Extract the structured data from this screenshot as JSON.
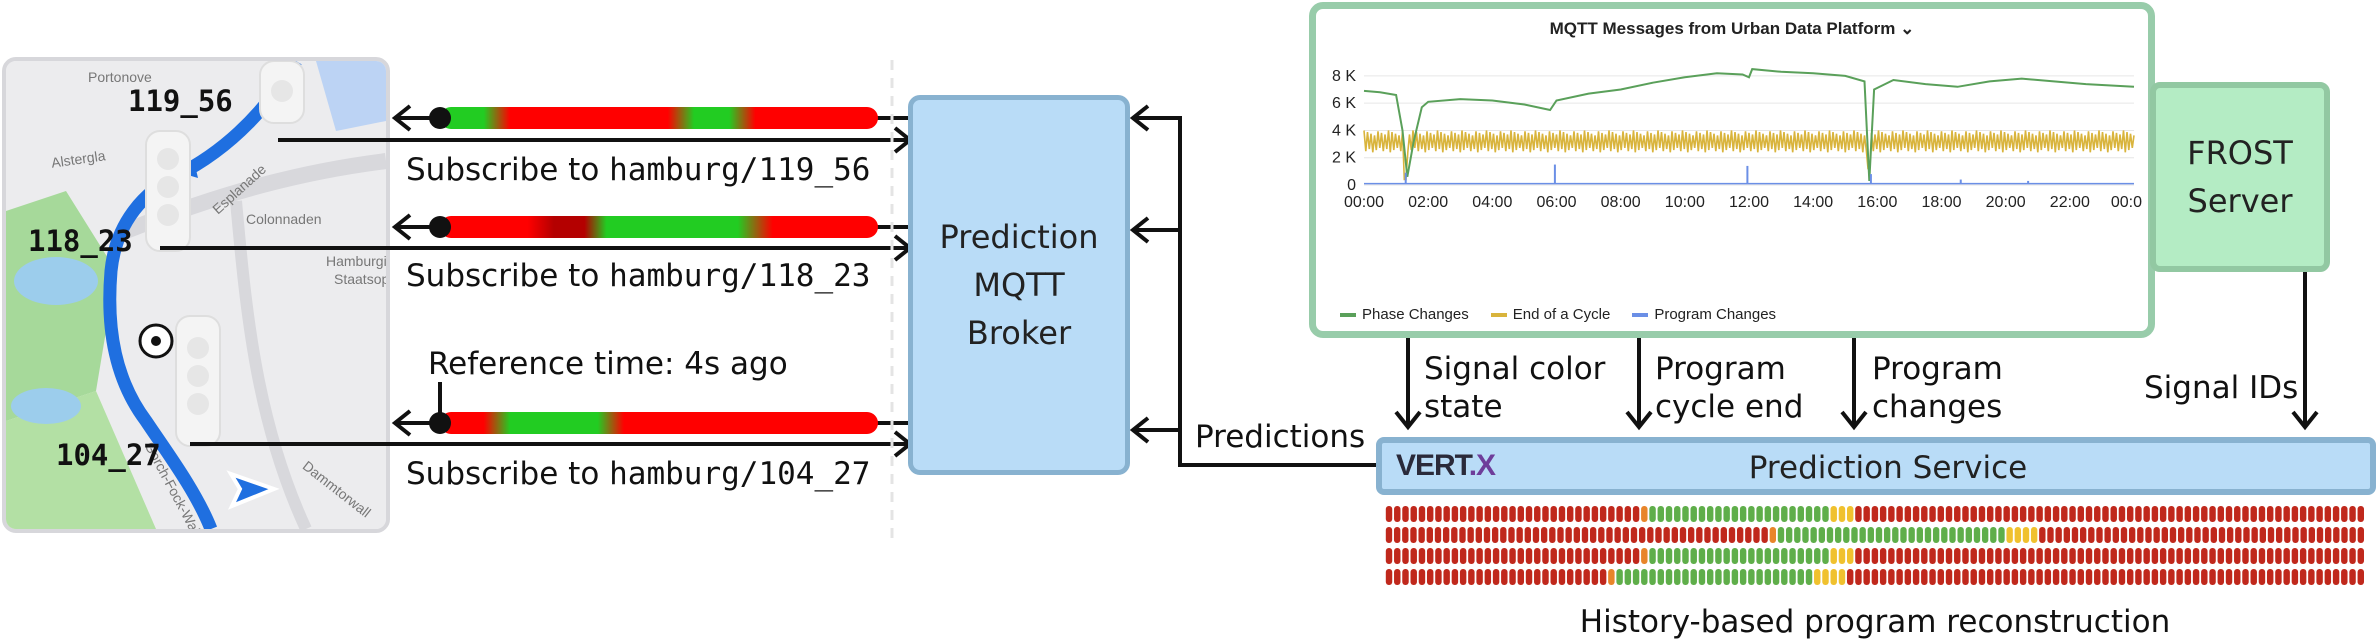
{
  "map": {
    "signals": [
      "119_56",
      "118_23",
      "104_27"
    ],
    "streets": [
      "Portonove",
      "Alstergla",
      "Esplanade",
      "Colonnaden",
      "Hamburgi",
      "Staatsop",
      "Gorch-Fock-Wall",
      "Dammtorwall"
    ]
  },
  "subscriptions": [
    {
      "prefix": "Subscribe to ",
      "topic": "hamburg/119_56"
    },
    {
      "prefix": "Subscribe to ",
      "topic": "hamburg/118_23"
    },
    {
      "prefix": "Subscribe to ",
      "topic": "hamburg/104_27"
    }
  ],
  "reference_time": "Reference time: 4s ago",
  "broker": {
    "line1": "Prediction",
    "line2": "MQTT",
    "line3": "Broker"
  },
  "chart_data": {
    "type": "line",
    "title": "MQTT Messages from Urban Data Platform",
    "title_chevron": "⌄",
    "x_ticks": [
      "00:00",
      "02:00",
      "04:00",
      "06:00",
      "08:00",
      "10:00",
      "12:00",
      "14:00",
      "16:00",
      "18:00",
      "20:00",
      "22:00",
      "00:0"
    ],
    "y_ticks": [
      "0",
      "2 K",
      "4 K",
      "6 K",
      "8 K"
    ],
    "ylim": [
      0,
      8800
    ],
    "xlim": [
      0,
      24
    ],
    "legend_placement": "bottom",
    "series": [
      {
        "name": "Phase Changes",
        "color": "#5aa05a",
        "points": [
          [
            0,
            6900
          ],
          [
            0.5,
            6800
          ],
          [
            1,
            6600
          ],
          [
            1.2,
            4000
          ],
          [
            1.35,
            600
          ],
          [
            1.55,
            3200
          ],
          [
            1.8,
            5700
          ],
          [
            2,
            6100
          ],
          [
            3,
            6300
          ],
          [
            4,
            6200
          ],
          [
            5,
            5900
          ],
          [
            5.8,
            5500
          ],
          [
            6,
            6200
          ],
          [
            7,
            6700
          ],
          [
            8,
            7000
          ],
          [
            9,
            7500
          ],
          [
            10,
            7900
          ],
          [
            11,
            8200
          ],
          [
            11.8,
            8100
          ],
          [
            12,
            7900
          ],
          [
            12.1,
            8500
          ],
          [
            13,
            8300
          ],
          [
            14,
            8200
          ],
          [
            15,
            8000
          ],
          [
            15.6,
            7600
          ],
          [
            15.75,
            300
          ],
          [
            15.9,
            7000
          ],
          [
            16.5,
            7700
          ],
          [
            17.5,
            7400
          ],
          [
            18.5,
            7200
          ],
          [
            19.5,
            7600
          ],
          [
            20.5,
            7800
          ],
          [
            21.5,
            7600
          ],
          [
            22.5,
            7400
          ],
          [
            24,
            7200
          ]
        ]
      },
      {
        "name": "End of a Cycle",
        "color": "#d9b43c",
        "band": {
          "low": 2400,
          "high": 4000
        },
        "dips": [
          [
            1.3,
            400
          ],
          [
            15.75,
            1200
          ]
        ]
      },
      {
        "name": "Program Changes",
        "color": "#6b8fe6",
        "base": 100,
        "spikes": [
          [
            1.3,
            900
          ],
          [
            5.95,
            1500
          ],
          [
            11.95,
            1400
          ],
          [
            15.8,
            800
          ],
          [
            18.6,
            400
          ],
          [
            20.7,
            300
          ]
        ]
      }
    ]
  },
  "frost": {
    "line1": "FROST",
    "line2": "Server"
  },
  "flows": {
    "signal_color": [
      "Signal color",
      "state"
    ],
    "program_cycle": [
      "Program",
      "cycle end"
    ],
    "program_changes": [
      "Program",
      "changes"
    ],
    "signal_ids": "Signal IDs",
    "predictions": "Predictions"
  },
  "service": {
    "title": "Prediction Service",
    "logo_main": "VERT",
    "logo_dot": ".",
    "logo_x": "X"
  },
  "history": {
    "caption": "History-based program reconstruction",
    "rows": [
      "RRRRRRRRRRRRRRRRRRRRRRRRRRRRRRROGGGGGGGGGGGGGGGGGGGGGGYYYRRRRRRRRRRRRRRRRRRRRRRRRRRRRRRRRRRRRRRRRRRRRRRRRRRRRRRRRRRRRRR",
      "RRRRRRRRRRRRRRRRRRRRRRRRRRRRRRRRRRRRRRRRRRRRRRROGGGGGGGGGGGGGGGGGGGGGGGGGGGGYYYYRRRRRRRRRRRRRRRRRRRRRRRRRRRRRRRRRRRRRRRR",
      "RRRRRRRRRRRRRRRRRRRRRRRRRRRRRRROGGGGGGGGGGGGGGGGGGGGGGYYYRRRRRRRRRRRRRRRRRRRRRRRRRRRRRRRRRRRRRRRRRRRRRRRRRRRRRRRRRRRRRR",
      "RRRRRRRRRRRRRRRRRRRRRRRRRRROGGGGGGGGGGGGGGGGGGGGGGGGYYYYRRRRRRRRRRRRRRRRRRRRRRRRRRRRRRRRRRRRRRRRRRRRRRRRRRRRRRRRRRRRRRR"
    ],
    "colors": {
      "R": "#c0281c",
      "G": "#5fae4a",
      "Y": "#f0c12e",
      "O": "#e8852a"
    }
  },
  "colors": {
    "route": "#1f6fe0",
    "broker": "#b9dcf7",
    "frost": "#b4ecc4",
    "phase_red": "#ff0000",
    "phase_green": "#22cc22"
  }
}
